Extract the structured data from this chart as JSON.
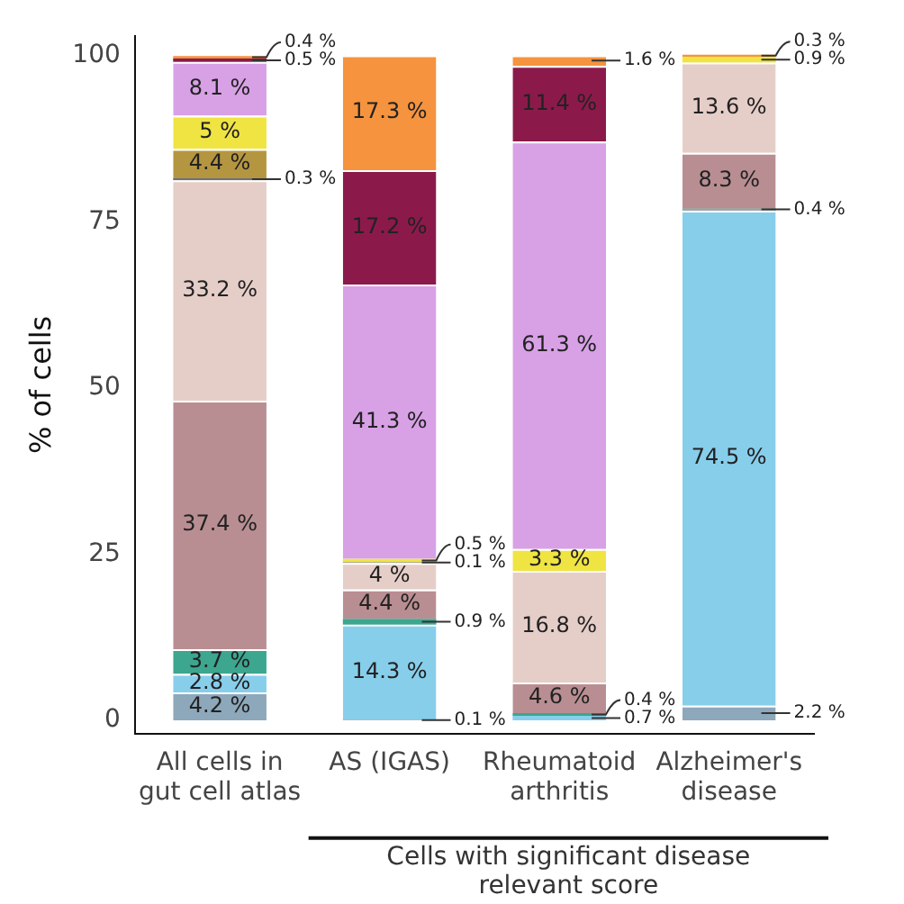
{
  "chart_data": {
    "type": "bar",
    "stacked": true,
    "ylabel": "% of cells",
    "categories": [
      "All cells in gut cell atlas",
      "AS (IGAS)",
      "Rheumatoid arthritis",
      "Alzheimer's disease"
    ],
    "series": [
      {
        "color": "#8ea8bb",
        "values": [
          4.2,
          0.1,
          0,
          2.2
        ],
        "value_labels": [
          "4.2 %",
          "0.1 %",
          null,
          "2.2 %"
        ]
      },
      {
        "color": "#87ceeb",
        "values": [
          2.8,
          14.3,
          0.7,
          74.5
        ],
        "value_labels": [
          "2.8 %",
          "14.3 %",
          "0.7 %",
          "74.5 %"
        ]
      },
      {
        "color": "#3ca68f",
        "values": [
          3.7,
          0.9,
          0.4,
          0
        ],
        "value_labels": [
          "3.7 %",
          "0.9 %",
          "0.4 %",
          null
        ]
      },
      {
        "color": "#a3a3a3",
        "values": [
          0,
          0,
          0,
          0.4
        ],
        "value_labels": [
          null,
          null,
          null,
          "0.4 %"
        ]
      },
      {
        "color": "#b98e92",
        "values": [
          37.4,
          4.4,
          4.6,
          8.3
        ],
        "value_labels": [
          "37.4 %",
          "4.4 %",
          "4.6 %",
          "8.3 %"
        ]
      },
      {
        "color": "#e6cec8",
        "values": [
          33.2,
          4,
          16.8,
          13.6
        ],
        "value_labels": [
          "33.2 %",
          "4 %",
          "16.8 %",
          "13.6 %"
        ]
      },
      {
        "color": "#707070",
        "values": [
          0.3,
          0.1,
          0,
          0
        ],
        "value_labels": [
          "0.3 %",
          "0.1 %",
          null,
          null
        ]
      },
      {
        "color": "#b59640",
        "values": [
          4.4,
          0,
          0,
          0
        ],
        "value_labels": [
          "4.4 %",
          null,
          null,
          null
        ]
      },
      {
        "color": "#f0e442",
        "values": [
          5,
          0.5,
          3.3,
          0.9
        ],
        "value_labels": [
          "5 %",
          "0.5 %",
          "3.3 %",
          "0.9 %"
        ]
      },
      {
        "color": "#d8a1e6",
        "values": [
          8.1,
          41.3,
          61.3,
          0
        ],
        "value_labels": [
          "8.1 %",
          "41.3 %",
          "61.3 %",
          null
        ]
      },
      {
        "color": "#8b1a4b",
        "values": [
          0.5,
          17.2,
          11.4,
          0
        ],
        "value_labels": [
          "0.5 %",
          "17.2 %",
          "11.4 %",
          null
        ]
      },
      {
        "color": "#f5933e",
        "values": [
          0.4,
          17.3,
          1.6,
          0.3
        ],
        "value_labels": [
          "0.4 %",
          "17.3 %",
          "1.6 %",
          "0.3 %"
        ]
      }
    ],
    "ylim": [
      -2,
      103
    ],
    "yticks": [
      0,
      25,
      50,
      75,
      100
    ],
    "grid": false,
    "legend": false,
    "annotations": [
      "Cells with significant disease relevant score"
    ]
  }
}
